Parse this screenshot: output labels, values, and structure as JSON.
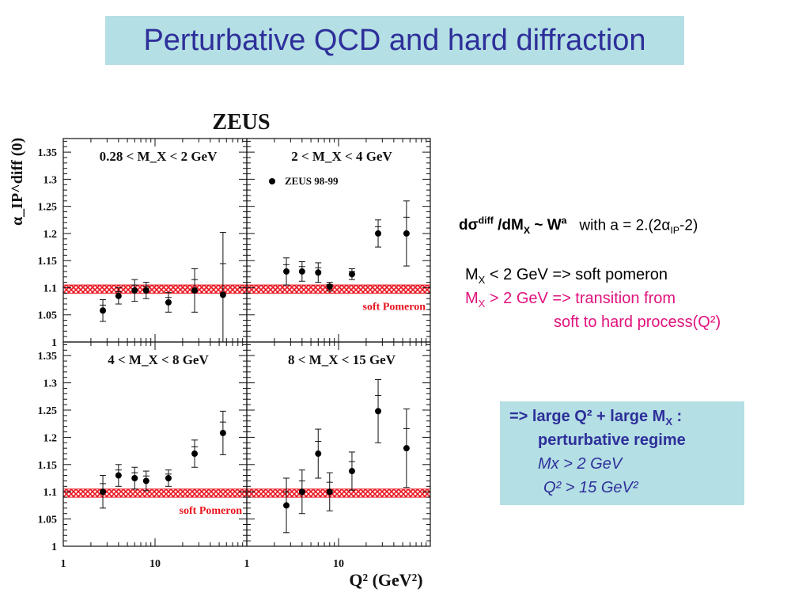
{
  "slide_title": "Perturbative QCD and hard diffraction",
  "figure": {
    "experiment": "ZEUS",
    "ylabel": "α_IP^diff (0)",
    "xlabel": "Q² (GeV²)",
    "legend": "ZEUS 98-99",
    "band_label": "soft Pomeron",
    "colors": {
      "band": "#e8141e",
      "points": "#000000"
    }
  },
  "chart_data": [
    {
      "type": "scatter",
      "title": "0.28 < M_X < 2 GeV",
      "xscale": "log",
      "xlim": [
        1,
        100
      ],
      "xticks": [
        1,
        10
      ],
      "ylim": [
        1,
        1.375
      ],
      "yticks": [
        "1",
        "1.05",
        "1.1",
        "1.15",
        "1.2",
        "1.25",
        "1.3",
        "1.35"
      ],
      "band": [
        1.09,
        1.105
      ],
      "x": [
        2.7,
        4,
        6,
        8,
        14,
        27,
        55
      ],
      "y": [
        1.058,
        1.085,
        1.095,
        1.095,
        1.073,
        1.095,
        1.087
      ],
      "err": [
        0.02,
        0.015,
        0.02,
        0.015,
        0.018,
        0.04,
        0.115
      ],
      "band_label_shown": false
    },
    {
      "type": "scatter",
      "title": "2 < M_X < 4 GeV",
      "legend": "ZEUS 98-99",
      "xscale": "log",
      "xlim": [
        1,
        100
      ],
      "xticks": [
        1,
        10
      ],
      "ylim": [
        1,
        1.375
      ],
      "band": [
        1.09,
        1.105
      ],
      "x": [
        2.7,
        4,
        6,
        8,
        14,
        27,
        55
      ],
      "y": [
        1.13,
        1.13,
        1.128,
        1.102,
        1.125,
        1.2,
        1.2
      ],
      "err": [
        0.025,
        0.018,
        0.018,
        0.008,
        0.01,
        0.025,
        0.06
      ],
      "band_label_shown": true
    },
    {
      "type": "scatter",
      "title": "4 < M_X < 8 GeV",
      "xscale": "log",
      "xlim": [
        1,
        100
      ],
      "xticks": [
        1,
        10
      ],
      "ylim": [
        1,
        1.375
      ],
      "yticks": [
        "1",
        "1.05",
        "1.1",
        "1.15",
        "1.2",
        "1.25",
        "1.3",
        "1.35"
      ],
      "band": [
        1.09,
        1.105
      ],
      "x": [
        2.7,
        4,
        6,
        8,
        14,
        27,
        55
      ],
      "y": [
        1.1,
        1.13,
        1.125,
        1.12,
        1.125,
        1.17,
        1.208
      ],
      "err": [
        0.03,
        0.02,
        0.02,
        0.018,
        0.015,
        0.025,
        0.04
      ],
      "band_label_shown": true
    },
    {
      "type": "scatter",
      "title": "8 < M_X < 15 GeV",
      "xscale": "log",
      "xlim": [
        1,
        100
      ],
      "xticks": [
        1,
        10
      ],
      "ylim": [
        1,
        1.375
      ],
      "band": [
        1.09,
        1.105
      ],
      "x": [
        2.7,
        4,
        6,
        8,
        14,
        27,
        55
      ],
      "y": [
        1.075,
        1.1,
        1.17,
        1.1,
        1.138,
        1.248,
        1.18
      ],
      "err": [
        0.05,
        0.04,
        0.045,
        0.035,
        0.035,
        0.058,
        0.072
      ],
      "band_label_shown": false
    }
  ],
  "formula": {
    "d": "d",
    "sigma": "σ",
    "diff_sup": "diff",
    "slash_dM": " /dM",
    "x_sub": "X",
    "tilde": " ~ ",
    "w": "W",
    "a_sup": "a",
    "with_text": "   with a = 2.(2",
    "alpha": "α",
    "ip_sub": "IP",
    "tail": "-2)"
  },
  "notes": {
    "line1_m": "M",
    "line1_sub": "X",
    "line1_rest": " < 2 GeV => soft pomeron",
    "line2_m": "M",
    "line2_sub": "X",
    "line2_rest": " > 2 GeV => transition from",
    "line3": "soft to hard process(Q²)"
  },
  "conclusion": {
    "line1_a": "=> large Q² + large M",
    "line1_sub": "X",
    "line1_b": " :",
    "line2": "perturbative regime",
    "line3": "Mx > 2 GeV",
    "line4": "Q² > 15 GeV²"
  }
}
